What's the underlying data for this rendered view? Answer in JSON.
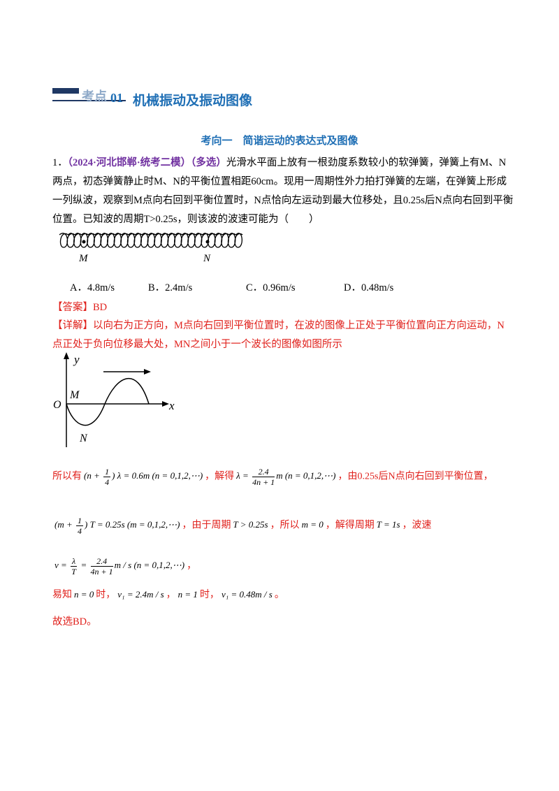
{
  "header": {
    "badge": "考点",
    "number": "01",
    "title": "机械振动及振动图像"
  },
  "section_title": "考向一　简谐运动的表达式及图像",
  "question": {
    "number": "1．",
    "source": "（2024·河北邯郸·统考二模）",
    "tag": "（多选）",
    "stem": "光滑水平面上放有一根劲度系数较小的软弹簧，弹簧上有M、N两点，初态弹簧静止时M、N的平衡位置相距60cm。现用一周期性外力拍打弹簧的左端，在弹簧上形成一列纵波，观察到M点向右回到平衡位置时，N点恰向左运动到最大位移处，且0.25s后N点向右回到平衡位置。已知波的周期T>0.25s，则该波的波速可能为（　　）",
    "figure_labels": [
      "M",
      "N"
    ],
    "options": [
      "A．4.8m/s",
      "B．2.4m/s",
      "C．0.96m/s",
      "D．0.48m/s"
    ]
  },
  "answer": {
    "label": "【答案】",
    "value": "BD"
  },
  "explanation": {
    "label": "【详解】",
    "text": "以向右为正方向，M点向右回到平衡位置时，在波的图像上正处于平衡位置向正方向运动，N点正处于负向位移最大处，MN之间小于一个波长的图像如图所示",
    "graph_labels": {
      "y": "y",
      "m": "M",
      "o": "O",
      "x": "x",
      "n": "N"
    },
    "lines": [
      [
        {
          "t": "所以有"
        },
        {
          "m": [
            "(n + ",
            {
              "num": "1",
              "den": "4"
            },
            ") λ = 0.6m (n = 0,1,2,⋯)"
          ]
        },
        {
          "t": "，解得"
        },
        {
          "m": [
            "λ = ",
            {
              "num": "2.4",
              "den": "4n + 1"
            },
            "m (n = 0,1,2,⋯)"
          ]
        },
        {
          "t": "，由0.25s后N点向右回到平衡位置，"
        }
      ],
      [
        {
          "m": [
            "(m + ",
            {
              "num": "1",
              "den": "4"
            },
            ") T = 0.25s (m = 0,1,2,⋯)"
          ]
        },
        {
          "t": "，由于周期"
        },
        {
          "m": [
            "T > 0.25s"
          ]
        },
        {
          "t": "，所以"
        },
        {
          "m": [
            "m = 0"
          ]
        },
        {
          "t": "，解得周期"
        },
        {
          "m": [
            "T = 1s"
          ]
        },
        {
          "t": "，波速"
        }
      ],
      [
        {
          "m": [
            "v = ",
            {
              "num": "λ",
              "den": "T"
            },
            " = ",
            {
              "num": "2.4",
              "den": "4n + 1"
            },
            "m / s (n = 0,1,2,⋯)"
          ]
        },
        {
          "t": "，"
        }
      ],
      [
        {
          "t": "易知"
        },
        {
          "m": [
            "n = 0"
          ]
        },
        {
          "t": "时，"
        },
        {
          "m": [
            "v₁ = 2.4m / s"
          ]
        },
        {
          "t": "，"
        },
        {
          "m": [
            "n = 1"
          ]
        },
        {
          "t": "时，"
        },
        {
          "m": [
            "v₁ = 0.48m / s"
          ]
        },
        {
          "t": "。"
        }
      ]
    ],
    "conclusion": "故选BD。"
  }
}
